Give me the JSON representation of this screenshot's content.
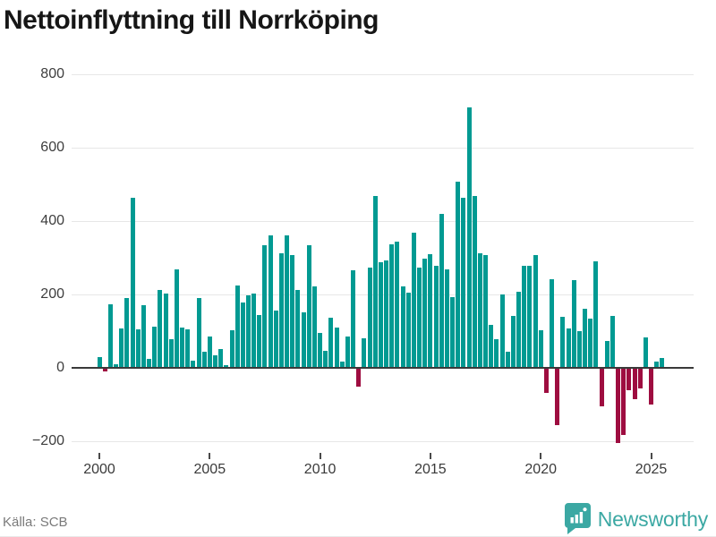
{
  "chart_data": {
    "type": "bar",
    "title": "Nettoinflyttning till Norrköping",
    "source": "Källa: SCB",
    "frequency": "quarterly",
    "x_start": "2000Q1",
    "x_end": "2025Q3",
    "x_tick_labels": [
      "2000",
      "2005",
      "2010",
      "2015",
      "2020",
      "2025"
    ],
    "y_ticks": [
      {
        "label": "800",
        "value": 800
      },
      {
        "label": "600",
        "value": 600
      },
      {
        "label": "400",
        "value": 400
      },
      {
        "label": "200",
        "value": 200
      },
      {
        "label": "0",
        "value": 0
      },
      {
        "label": "−200",
        "value": -200
      }
    ],
    "ylim": [
      -240,
      830
    ],
    "grid": true,
    "legend": false,
    "colors": {
      "positive": "#019a92",
      "negative": "#9e0d40"
    },
    "values": [
      27,
      -10,
      172,
      8,
      105,
      189,
      463,
      103,
      170,
      23,
      112,
      211,
      202,
      77,
      267,
      109,
      103,
      19,
      189,
      42,
      84,
      34,
      49,
      5,
      101,
      224,
      176,
      197,
      202,
      144,
      333,
      361,
      154,
      310,
      361,
      306,
      211,
      150,
      333,
      221,
      94,
      46,
      136,
      109,
      17,
      84,
      265,
      -53,
      79,
      271,
      466,
      286,
      292,
      335,
      343,
      222,
      204,
      367,
      271,
      296,
      308,
      277,
      419,
      267,
      191,
      507,
      462,
      709,
      468,
      310,
      307,
      116,
      76,
      200,
      44,
      140,
      205,
      276,
      276,
      306,
      101,
      -69,
      240,
      -158,
      138,
      107,
      238,
      99,
      160,
      132,
      289,
      -105,
      71,
      140,
      -205,
      -185,
      -63,
      -86,
      -57,
      82,
      -102,
      16,
      26
    ]
  },
  "branding": {
    "wordmark": "Newsworthy"
  }
}
